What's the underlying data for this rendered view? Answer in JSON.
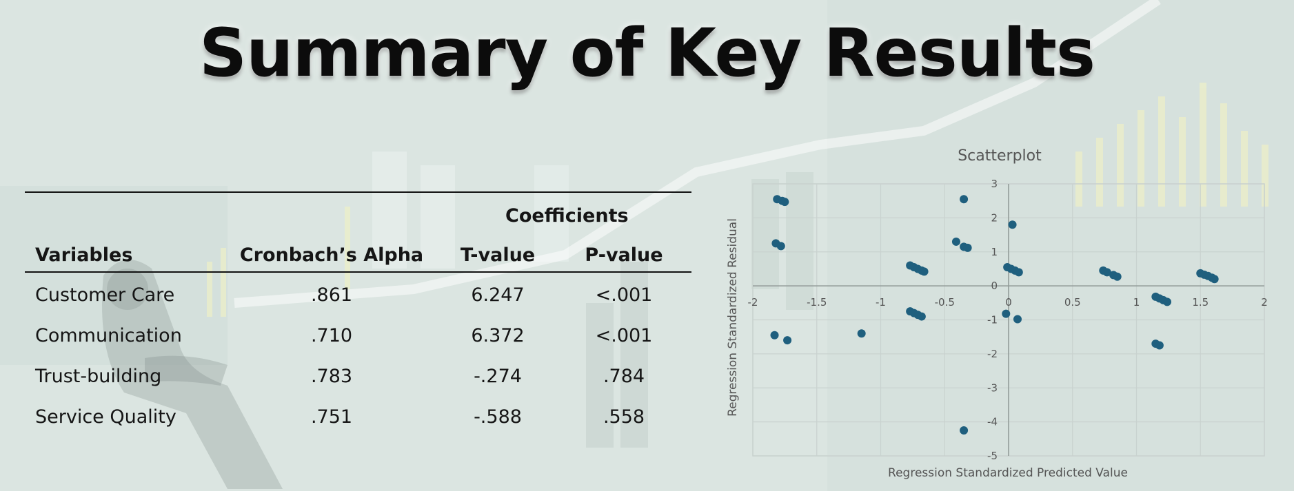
{
  "slide": {
    "title": "Summary of Key Results"
  },
  "table": {
    "group_header": "Coefficients",
    "headers": [
      "Variables",
      "Cronbach’s Alpha",
      "T-value",
      "P-value"
    ],
    "rows": [
      [
        "Customer Care",
        ".861",
        "6.247",
        "<.001"
      ],
      [
        "Communication",
        ".710",
        "6.372",
        "<.001"
      ],
      [
        "Trust-building",
        ".783",
        "-.274",
        ".784"
      ],
      [
        "Service Quality",
        ".751",
        "-.588",
        ".558"
      ]
    ]
  },
  "chart_data": {
    "type": "scatter",
    "title": "Scatterplot",
    "xlabel": "Regression Standardized Predicted Value",
    "ylabel": "Regression Standardized Residual",
    "xlim": [
      -2,
      2
    ],
    "ylim": [
      -5,
      3
    ],
    "xticks": [
      "-2",
      "-1.5",
      "-1",
      "-0.5",
      "0",
      "0.5",
      "1",
      "1.5",
      "2"
    ],
    "yticks": [
      "3",
      "2",
      "1",
      "0",
      "-1",
      "-2",
      "-3",
      "-4",
      "-5"
    ],
    "grid": true,
    "marker_color": "#1f5f7e",
    "points": [
      {
        "x": -1.81,
        "y": 2.55
      },
      {
        "x": -1.77,
        "y": 2.5
      },
      {
        "x": -1.75,
        "y": 2.47
      },
      {
        "x": -1.82,
        "y": 1.25
      },
      {
        "x": -1.78,
        "y": 1.17
      },
      {
        "x": -1.83,
        "y": -1.45
      },
      {
        "x": -1.73,
        "y": -1.6
      },
      {
        "x": -1.15,
        "y": -1.4
      },
      {
        "x": -0.77,
        "y": 0.6
      },
      {
        "x": -0.74,
        "y": 0.55
      },
      {
        "x": -0.71,
        "y": 0.5
      },
      {
        "x": -0.68,
        "y": 0.45
      },
      {
        "x": -0.66,
        "y": 0.42
      },
      {
        "x": -0.77,
        "y": -0.75
      },
      {
        "x": -0.74,
        "y": -0.8
      },
      {
        "x": -0.71,
        "y": -0.85
      },
      {
        "x": -0.68,
        "y": -0.9
      },
      {
        "x": -0.35,
        "y": 2.55
      },
      {
        "x": -0.41,
        "y": 1.3
      },
      {
        "x": -0.35,
        "y": 1.15
      },
      {
        "x": -0.32,
        "y": 1.12
      },
      {
        "x": -0.35,
        "y": -4.25
      },
      {
        "x": 0.03,
        "y": 1.8
      },
      {
        "x": -0.01,
        "y": 0.55
      },
      {
        "x": 0.02,
        "y": 0.5
      },
      {
        "x": 0.05,
        "y": 0.45
      },
      {
        "x": 0.08,
        "y": 0.4
      },
      {
        "x": -0.02,
        "y": -0.82
      },
      {
        "x": 0.07,
        "y": -0.98
      },
      {
        "x": 0.74,
        "y": 0.45
      },
      {
        "x": 0.77,
        "y": 0.4
      },
      {
        "x": 0.82,
        "y": 0.32
      },
      {
        "x": 0.85,
        "y": 0.27
      },
      {
        "x": 1.15,
        "y": -0.32
      },
      {
        "x": 1.18,
        "y": -0.37
      },
      {
        "x": 1.21,
        "y": -0.42
      },
      {
        "x": 1.24,
        "y": -0.47
      },
      {
        "x": 1.15,
        "y": -1.7
      },
      {
        "x": 1.18,
        "y": -1.75
      },
      {
        "x": 1.5,
        "y": 0.37
      },
      {
        "x": 1.53,
        "y": 0.33
      },
      {
        "x": 1.56,
        "y": 0.29
      },
      {
        "x": 1.59,
        "y": 0.24
      },
      {
        "x": 1.61,
        "y": 0.2
      }
    ]
  }
}
